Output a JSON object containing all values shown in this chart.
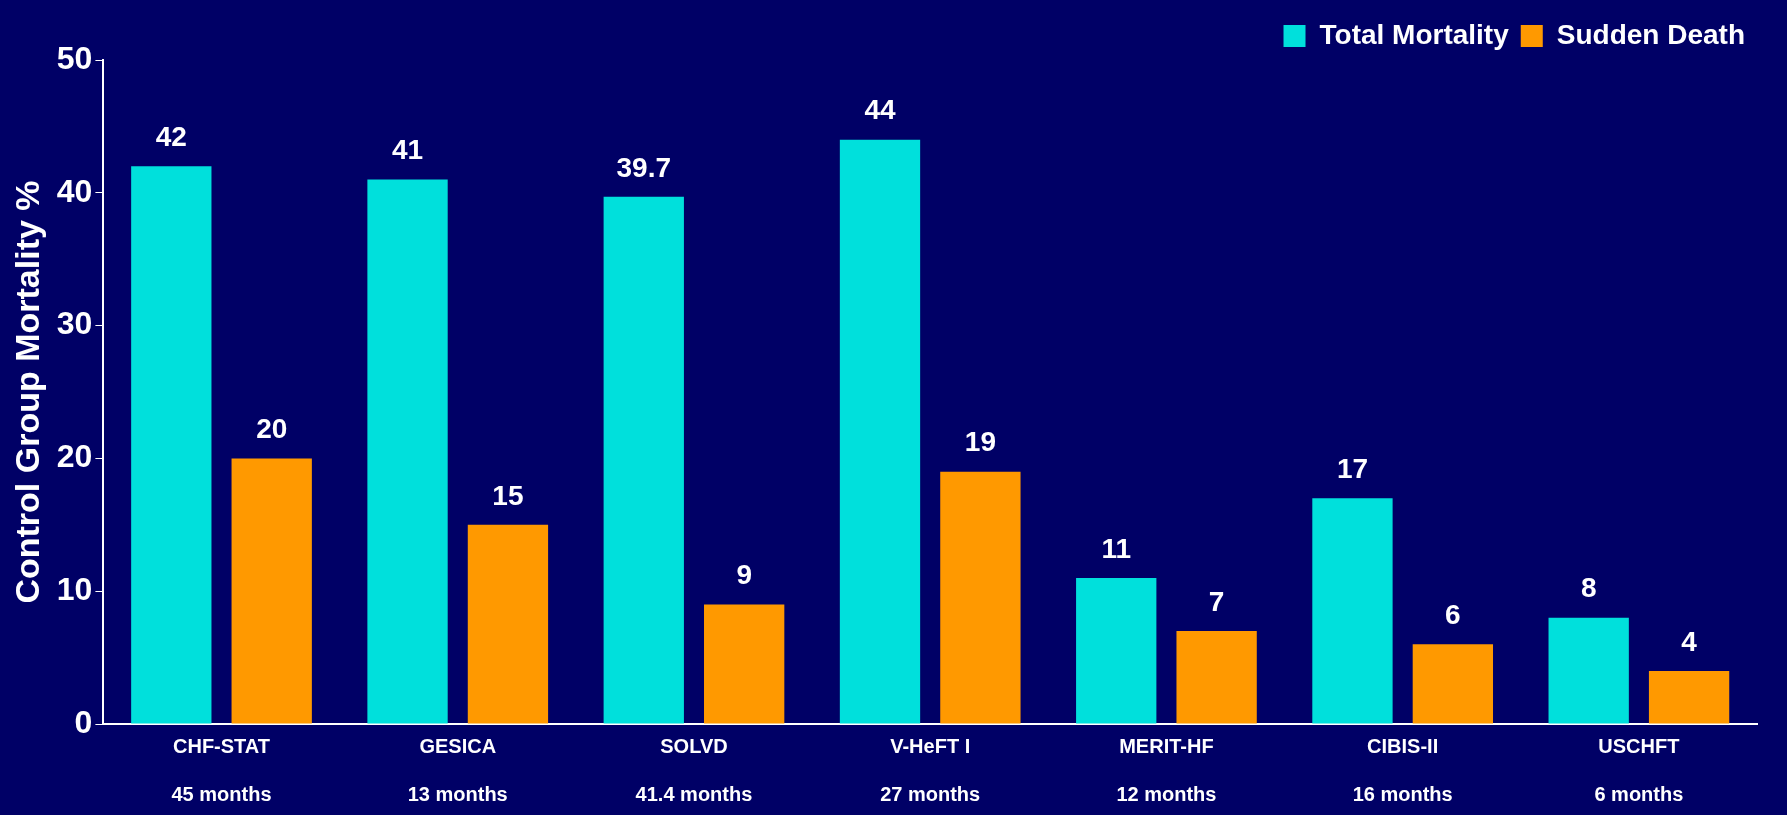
{
  "chart_data": {
    "type": "bar",
    "ylabel": "Control Group Mortality %",
    "categories": [
      "CHF-STAT\n\n45 months",
      "GESICA\n\n13 months",
      "SOLVD\n\n41.4 months",
      "V-HeFT I\n\n27 months",
      "MERIT-HF\n\n12 months",
      "CIBIS-II\n\n16 months",
      "USCHFT\n\n6 months"
    ],
    "series": [
      {
        "name": "Total Mortality",
        "color": "#00e0dc",
        "values": [
          42,
          41,
          39.7,
          44,
          11,
          17,
          8
        ]
      },
      {
        "name": "Sudden Death",
        "color": "#ff9900",
        "values": [
          20,
          15,
          9,
          19,
          7,
          6,
          4
        ]
      }
    ],
    "ylim": [
      0,
      50
    ],
    "yticks": [
      0,
      10,
      20,
      30,
      40,
      50
    ],
    "grid": false,
    "legend": "top right",
    "data_labels": true
  }
}
